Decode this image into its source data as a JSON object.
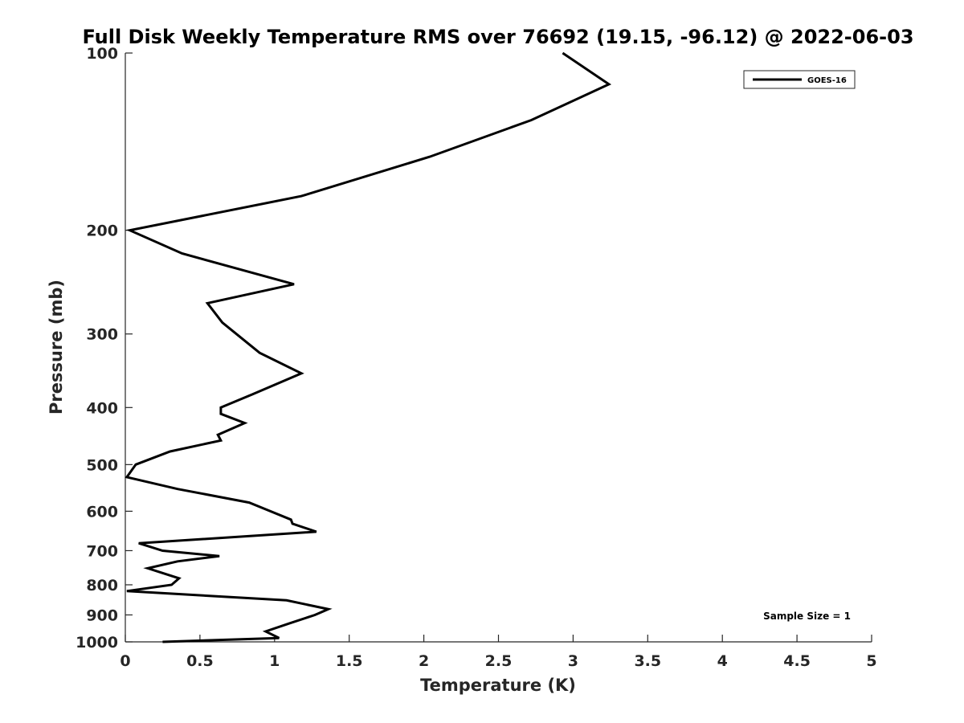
{
  "chart_data": {
    "type": "line",
    "title": "Full Disk Weekly Temperature RMS over 76692 (19.15, -96.12) @ 2022-06-03",
    "xlabel": "Temperature (K)",
    "ylabel": "Pressure (mb)",
    "xlim": [
      0,
      5
    ],
    "ylim": [
      1000,
      100
    ],
    "y_scale": "log",
    "y_reversed": true,
    "grid": false,
    "x_ticks": [
      "0",
      "0.5",
      "1",
      "1.5",
      "2",
      "2.5",
      "3",
      "3.5",
      "4",
      "4.5",
      "5"
    ],
    "y_ticks": [
      "100",
      "200",
      "300",
      "400",
      "500",
      "600",
      "700",
      "800",
      "900",
      "1000"
    ],
    "legend_position": "top-right",
    "series": [
      {
        "name": "GOES-16",
        "color": "#000000",
        "x": [
          2.93,
          3.24,
          2.72,
          2.04,
          1.18,
          0.03,
          0.38,
          1.13,
          0.55,
          0.65,
          0.9,
          1.18,
          0.85,
          0.64,
          0.64,
          0.8,
          0.62,
          0.64,
          0.3,
          0.07,
          0.01,
          0.35,
          0.83,
          1.11,
          1.12,
          1.28,
          0.09,
          0.25,
          0.63,
          0.35,
          0.15,
          0.36,
          0.31,
          0.01,
          1.08,
          1.36,
          1.27,
          1.1,
          0.94,
          1.03,
          0.25
        ],
        "y": [
          100,
          113,
          130,
          150,
          175,
          200,
          219,
          247,
          266,
          287,
          323,
          350,
          380,
          400,
          410,
          425,
          445,
          455,
          475,
          500,
          525,
          550,
          580,
          620,
          630,
          650,
          680,
          700,
          715,
          730,
          750,
          780,
          800,
          820,
          850,
          880,
          900,
          930,
          960,
          985,
          1000
        ]
      }
    ],
    "annotations": [
      "Sample Size = 1"
    ]
  }
}
